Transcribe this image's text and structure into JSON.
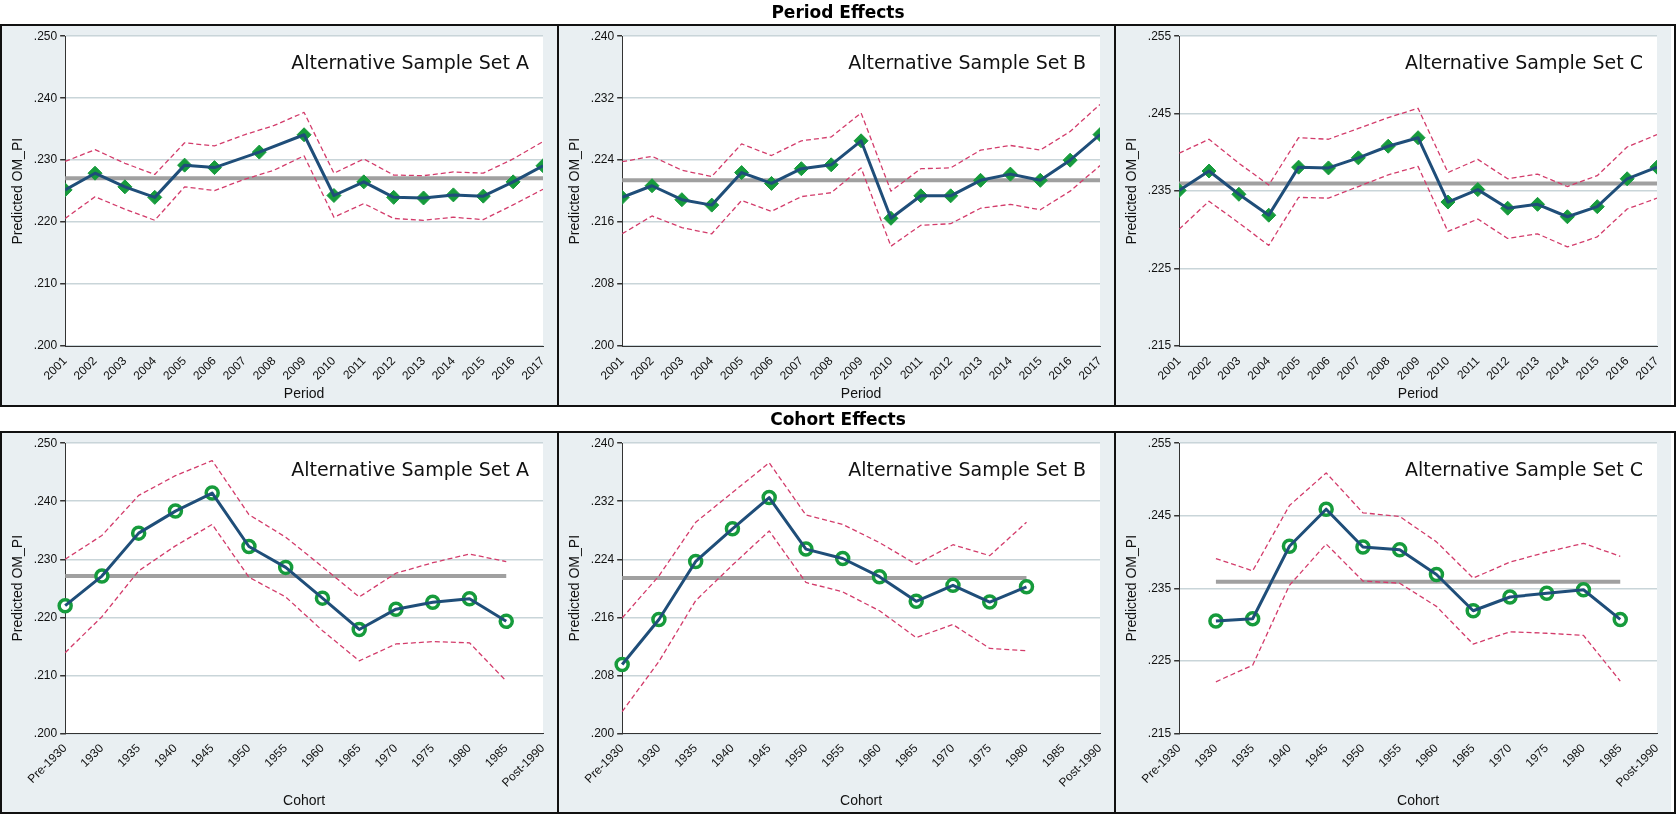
{
  "chart_data": [
    {
      "type": "line",
      "title": "Alternative Sample Set A",
      "xlabel": "Period",
      "ylabel": "Predicted OM_PI",
      "xlim": [
        2001,
        2017
      ],
      "xticks": [
        2001,
        2002,
        2003,
        2004,
        2005,
        2006,
        2007,
        2008,
        2009,
        2010,
        2011,
        2012,
        2013,
        2014,
        2015,
        2016,
        2017
      ],
      "ylim": [
        0.2,
        0.25
      ],
      "yticks": [
        {
          "value": 0.2,
          "label": ".200"
        },
        {
          "value": 0.21,
          "label": ".210"
        },
        {
          "value": 0.22,
          "label": ".220"
        },
        {
          "value": 0.23,
          "label": ".230"
        },
        {
          "value": 0.24,
          "label": ".240"
        },
        {
          "value": 0.25,
          "label": ".250"
        }
      ],
      "grid": "y",
      "ref_lines": [
        {
          "axis": "y",
          "value": 0.2271,
          "color": "#a0a0a0"
        }
      ],
      "series": [
        {
          "type": "line",
          "color": "#d33c6b",
          "line_style": "dashed",
          "marker": "none",
          "x": [
            2001,
            2002,
            2003,
            2004,
            2005,
            2006,
            2007,
            2008,
            2009,
            2010,
            2011,
            2012,
            2013,
            2014,
            2015,
            2016,
            2017
          ],
          "values": [
            0.2298,
            0.2317,
            0.2295,
            0.2277,
            0.2328,
            0.2323,
            0.2341,
            0.2356,
            0.2377,
            0.2279,
            0.2302,
            0.2276,
            0.2275,
            0.2281,
            0.2279,
            0.2302,
            0.233
          ]
        },
        {
          "type": "line",
          "color": "#d33c6b",
          "line_style": "dashed",
          "marker": "none",
          "x": [
            2001,
            2002,
            2003,
            2004,
            2005,
            2006,
            2007,
            2008,
            2009,
            2010,
            2011,
            2012,
            2013,
            2014,
            2015,
            2016,
            2017
          ],
          "values": [
            0.2206,
            0.2241,
            0.2221,
            0.2203,
            0.2257,
            0.2251,
            0.2269,
            0.2284,
            0.2307,
            0.2208,
            0.223,
            0.2206,
            0.2203,
            0.2208,
            0.2204,
            0.2228,
            0.2253
          ]
        },
        {
          "type": "line",
          "color": "#1f4e79",
          "line_style": "solid",
          "marker": "none",
          "x": [
            2001,
            2002,
            2003,
            2004,
            2005,
            2006,
            2007.5,
            2009,
            2010,
            2011,
            2012,
            2013,
            2014,
            2015,
            2016,
            2017
          ],
          "values": [
            0.2252,
            0.2279,
            0.2257,
            0.224,
            0.2292,
            0.2288,
            0.2313,
            0.2341,
            0.2243,
            0.2265,
            0.224,
            0.2239,
            0.2244,
            0.2242,
            0.2265,
            0.2291
          ]
        },
        {
          "type": "scatter",
          "color": "#169b3c",
          "marker": "diamond",
          "x": [
            2001,
            2002,
            2003,
            2004,
            2005,
            2006,
            2007.5,
            2009,
            2010,
            2011,
            2012,
            2013,
            2014,
            2015,
            2016,
            2017
          ],
          "values": [
            0.2252,
            0.2279,
            0.2257,
            0.224,
            0.2292,
            0.2288,
            0.2313,
            0.2341,
            0.2243,
            0.2265,
            0.224,
            0.2239,
            0.2244,
            0.2242,
            0.2265,
            0.2291
          ]
        }
      ]
    },
    {
      "type": "line",
      "subtitle": "Period Effects",
      "title": "Alternative Sample Set B",
      "xlabel": "Period",
      "ylabel": "Predicted OM_PI",
      "xlim": [
        2001,
        2017
      ],
      "xticks": [
        2001,
        2002,
        2003,
        2004,
        2005,
        2006,
        2007,
        2008,
        2009,
        2010,
        2011,
        2012,
        2013,
        2014,
        2015,
        2016,
        2017
      ],
      "ylim": [
        0.2,
        0.24
      ],
      "yticks": [
        {
          "value": 0.2,
          "label": ".200"
        },
        {
          "value": 0.208,
          "label": ".208"
        },
        {
          "value": 0.216,
          "label": ".216"
        },
        {
          "value": 0.224,
          "label": ".224"
        },
        {
          "value": 0.232,
          "label": ".232"
        },
        {
          "value": 0.24,
          "label": ".240"
        }
      ],
      "grid": "y",
      "ref_lines": [
        {
          "axis": "y",
          "value": 0.2214,
          "color": "#a0a0a0"
        }
      ],
      "x": [
        2001,
        2002,
        2003,
        2004,
        2005,
        2006,
        2007,
        2008,
        2009,
        2010,
        2011,
        2012,
        2013,
        2014,
        2015,
        2016,
        2017
      ],
      "series": [
        {
          "type": "line",
          "color": "#d33c6b",
          "line_style": "dashed",
          "marker": "none",
          "values": [
            0.2238,
            0.2245,
            0.2227,
            0.2219,
            0.2261,
            0.2246,
            0.2265,
            0.227,
            0.2301,
            0.22,
            0.2229,
            0.223,
            0.2253,
            0.2259,
            0.2253,
            0.2277,
            0.2312
          ]
        },
        {
          "type": "line",
          "color": "#d33c6b",
          "line_style": "dashed",
          "marker": "none",
          "values": [
            0.2145,
            0.2168,
            0.2153,
            0.2145,
            0.2188,
            0.2174,
            0.2193,
            0.2198,
            0.223,
            0.2129,
            0.2156,
            0.2158,
            0.2178,
            0.2183,
            0.2176,
            0.22,
            0.2233
          ]
        },
        {
          "type": "line",
          "color": "#1f4e79",
          "line_style": "solid",
          "marker": "none",
          "values": [
            0.2192,
            0.2207,
            0.2189,
            0.2182,
            0.2224,
            0.221,
            0.2229,
            0.2234,
            0.2265,
            0.2165,
            0.2194,
            0.2194,
            0.2214,
            0.2222,
            0.2214,
            0.224,
            0.2273
          ]
        },
        {
          "type": "scatter",
          "color": "#169b3c",
          "marker": "diamond",
          "values": [
            0.2192,
            0.2207,
            0.2189,
            0.2182,
            0.2224,
            0.221,
            0.2229,
            0.2234,
            0.2265,
            0.2165,
            0.2194,
            0.2194,
            0.2214,
            0.2222,
            0.2214,
            0.224,
            0.2273
          ]
        }
      ]
    },
    {
      "type": "line",
      "title": "Alternative Sample Set C",
      "xlabel": "Period",
      "ylabel": "Predicted OM_PI",
      "xlim": [
        2001,
        2017
      ],
      "xticks": [
        2001,
        2002,
        2003,
        2004,
        2005,
        2006,
        2007,
        2008,
        2009,
        2010,
        2011,
        2012,
        2013,
        2014,
        2015,
        2016,
        2017
      ],
      "ylim": [
        0.215,
        0.255
      ],
      "yticks": [
        {
          "value": 0.215,
          "label": ".215"
        },
        {
          "value": 0.225,
          "label": ".225"
        },
        {
          "value": 0.235,
          "label": ".235"
        },
        {
          "value": 0.245,
          "label": ".245"
        },
        {
          "value": 0.255,
          "label": ".255"
        }
      ],
      "grid": "y",
      "ref_lines": [
        {
          "axis": "y",
          "value": 0.236,
          "color": "#a0a0a0"
        }
      ],
      "x": [
        2001,
        2002,
        2003,
        2004,
        2005,
        2006,
        2007,
        2008,
        2009,
        2010,
        2011,
        2012,
        2013,
        2014,
        2015,
        2016,
        2017
      ],
      "series": [
        {
          "type": "line",
          "color": "#d33c6b",
          "line_style": "dashed",
          "marker": "none",
          "values": [
            0.2399,
            0.2417,
            0.2386,
            0.2358,
            0.2419,
            0.2417,
            0.2431,
            0.2445,
            0.2457,
            0.2374,
            0.2391,
            0.2366,
            0.2372,
            0.2356,
            0.237,
            0.2407,
            0.2423
          ]
        },
        {
          "type": "line",
          "color": "#d33c6b",
          "line_style": "dashed",
          "marker": "none",
          "values": [
            0.2301,
            0.2337,
            0.2309,
            0.228,
            0.2342,
            0.2341,
            0.2356,
            0.2371,
            0.2382,
            0.2298,
            0.2314,
            0.2289,
            0.2295,
            0.2278,
            0.2291,
            0.2327,
            0.2341
          ]
        },
        {
          "type": "line",
          "color": "#1f4e79",
          "line_style": "solid",
          "marker": "none",
          "values": [
            0.2351,
            0.2376,
            0.2346,
            0.2319,
            0.2381,
            0.238,
            0.2393,
            0.2408,
            0.2419,
            0.2336,
            0.2352,
            0.2328,
            0.2333,
            0.2317,
            0.233,
            0.2366,
            0.2381
          ]
        },
        {
          "type": "scatter",
          "color": "#169b3c",
          "marker": "diamond",
          "values": [
            0.2351,
            0.2376,
            0.2346,
            0.2319,
            0.2381,
            0.238,
            0.2393,
            0.2408,
            0.2419,
            0.2336,
            0.2352,
            0.2328,
            0.2333,
            0.2317,
            0.233,
            0.2366,
            0.2381
          ]
        }
      ]
    },
    {
      "type": "line",
      "title": "Alternative Sample Set A",
      "xlabel": "Cohort",
      "ylabel": "Predicted OM_PI",
      "categories": [
        "Pre-1930",
        "1930",
        "1935",
        "1940",
        "1945",
        "1950",
        "1955",
        "1960",
        "1965",
        "1970",
        "1975",
        "1980",
        "1985",
        "Post-1990"
      ],
      "ylim": [
        0.2,
        0.25
      ],
      "yticks": [
        {
          "value": 0.2,
          "label": ".200"
        },
        {
          "value": 0.21,
          "label": ".210"
        },
        {
          "value": 0.22,
          "label": ".220"
        },
        {
          "value": 0.23,
          "label": ".230"
        },
        {
          "value": 0.24,
          "label": ".240"
        },
        {
          "value": 0.25,
          "label": ".250"
        }
      ],
      "grid": "y",
      "ref_lines": [
        {
          "axis": "y",
          "value": 0.2271,
          "color": "#a0a0a0"
        }
      ],
      "series": [
        {
          "type": "line",
          "color": "#d33c6b",
          "line_style": "dashed",
          "marker": "none",
          "values": [
            0.23,
            0.2341,
            0.241,
            0.2444,
            0.247,
            0.2377,
            0.2338,
            0.2287,
            0.2235,
            0.2276,
            0.2294,
            0.2309,
            0.2296,
            null
          ]
        },
        {
          "type": "line",
          "color": "#d33c6b",
          "line_style": "dashed",
          "marker": "none",
          "values": [
            0.2139,
            0.2201,
            0.228,
            0.2323,
            0.236,
            0.2269,
            0.2235,
            0.2177,
            0.2125,
            0.2154,
            0.2158,
            0.2156,
            0.209,
            null
          ]
        },
        {
          "type": "line",
          "color": "#1f4e79",
          "line_style": "solid",
          "marker": "none",
          "values": [
            0.222,
            0.2271,
            0.2345,
            0.2383,
            0.2414,
            0.2322,
            0.2286,
            0.2233,
            0.2179,
            0.2214,
            0.2226,
            0.2232,
            0.2193,
            null
          ]
        },
        {
          "type": "scatter",
          "color": "#169b3c",
          "marker": "circle",
          "values": [
            0.222,
            0.2271,
            0.2345,
            0.2383,
            0.2414,
            0.2322,
            0.2286,
            0.2233,
            0.2179,
            0.2214,
            0.2226,
            0.2232,
            0.2193,
            null
          ]
        }
      ]
    },
    {
      "type": "line",
      "subtitle": "Cohort Effects",
      "title": "Alternative Sample Set B",
      "xlabel": "Cohort",
      "ylabel": "Predicted OM_PI",
      "categories": [
        "Pre-1930",
        "1930",
        "1935",
        "1940",
        "1945",
        "1950",
        "1955",
        "1960",
        "1965",
        "1970",
        "1975",
        "1980",
        "1985",
        "Post-1990"
      ],
      "ylim": [
        0.2,
        0.24
      ],
      "yticks": [
        {
          "value": 0.2,
          "label": ".200"
        },
        {
          "value": 0.208,
          "label": ".208"
        },
        {
          "value": 0.216,
          "label": ".216"
        },
        {
          "value": 0.224,
          "label": ".224"
        },
        {
          "value": 0.232,
          "label": ".232"
        },
        {
          "value": 0.24,
          "label": ".240"
        }
      ],
      "grid": "y",
      "ref_lines": [
        {
          "axis": "y",
          "value": 0.2214,
          "color": "#a0a0a0"
        }
      ],
      "series": [
        {
          "type": "line",
          "color": "#d33c6b",
          "line_style": "dashed",
          "marker": "none",
          "values": [
            0.2159,
            0.2217,
            0.2291,
            0.2332,
            0.2373,
            0.2301,
            0.2288,
            0.2263,
            0.2233,
            0.226,
            0.2245,
            0.2291,
            null,
            null
          ]
        },
        {
          "type": "line",
          "color": "#d33c6b",
          "line_style": "dashed",
          "marker": "none",
          "values": [
            0.203,
            0.2099,
            0.2183,
            0.2232,
            0.2279,
            0.2208,
            0.2195,
            0.2169,
            0.2132,
            0.215,
            0.2117,
            0.2114,
            null,
            null
          ]
        },
        {
          "type": "line",
          "color": "#1f4e79",
          "line_style": "solid",
          "marker": "none",
          "values": [
            0.2095,
            0.2157,
            0.2237,
            0.2282,
            0.2325,
            0.2254,
            0.2241,
            0.2216,
            0.2182,
            0.2204,
            0.2181,
            0.2202,
            null,
            null
          ]
        },
        {
          "type": "scatter",
          "color": "#169b3c",
          "marker": "circle",
          "values": [
            0.2095,
            0.2157,
            0.2237,
            0.2282,
            0.2325,
            0.2254,
            0.2241,
            0.2216,
            0.2182,
            0.2204,
            0.2181,
            0.2202,
            null,
            null
          ]
        }
      ]
    },
    {
      "type": "line",
      "title": "Alternative Sample Set C",
      "xlabel": "Cohort",
      "ylabel": "Predicted OM_PI",
      "categories": [
        "Pre-1930",
        "1930",
        "1935",
        "1940",
        "1945",
        "1950",
        "1955",
        "1960",
        "1965",
        "1970",
        "1975",
        "1980",
        "1985",
        "Post-1990"
      ],
      "ylim": [
        0.215,
        0.255
      ],
      "yticks": [
        {
          "value": 0.215,
          "label": ".215"
        },
        {
          "value": 0.225,
          "label": ".225"
        },
        {
          "value": 0.235,
          "label": ".235"
        },
        {
          "value": 0.245,
          "label": ".245"
        },
        {
          "value": 0.255,
          "label": ".255"
        }
      ],
      "grid": "y",
      "ref_lines": [
        {
          "axis": "y",
          "value": 0.2359,
          "color": "#a0a0a0"
        }
      ],
      "series": [
        {
          "type": "line",
          "color": "#d33c6b",
          "line_style": "dashed",
          "marker": "none",
          "values": [
            null,
            0.2391,
            0.2374,
            0.2464,
            0.2509,
            0.2454,
            0.2449,
            0.2414,
            0.2364,
            0.2386,
            0.24,
            0.2412,
            0.2394,
            null
          ]
        },
        {
          "type": "line",
          "color": "#d33c6b",
          "line_style": "dashed",
          "marker": "none",
          "values": [
            null,
            0.2221,
            0.2244,
            0.2354,
            0.2411,
            0.236,
            0.2357,
            0.2325,
            0.2273,
            0.229,
            0.2288,
            0.2285,
            0.2222,
            null
          ]
        },
        {
          "type": "line",
          "color": "#1f4e79",
          "line_style": "solid",
          "marker": "none",
          "values": [
            null,
            0.2305,
            0.2308,
            0.2408,
            0.2459,
            0.2407,
            0.2403,
            0.2369,
            0.2319,
            0.2338,
            0.2343,
            0.2348,
            0.2307,
            null
          ]
        },
        {
          "type": "scatter",
          "color": "#169b3c",
          "marker": "circle",
          "values": [
            null,
            0.2305,
            0.2308,
            0.2408,
            0.2459,
            0.2407,
            0.2403,
            0.2369,
            0.2319,
            0.2338,
            0.2343,
            0.2348,
            0.2307,
            null
          ]
        }
      ]
    }
  ]
}
